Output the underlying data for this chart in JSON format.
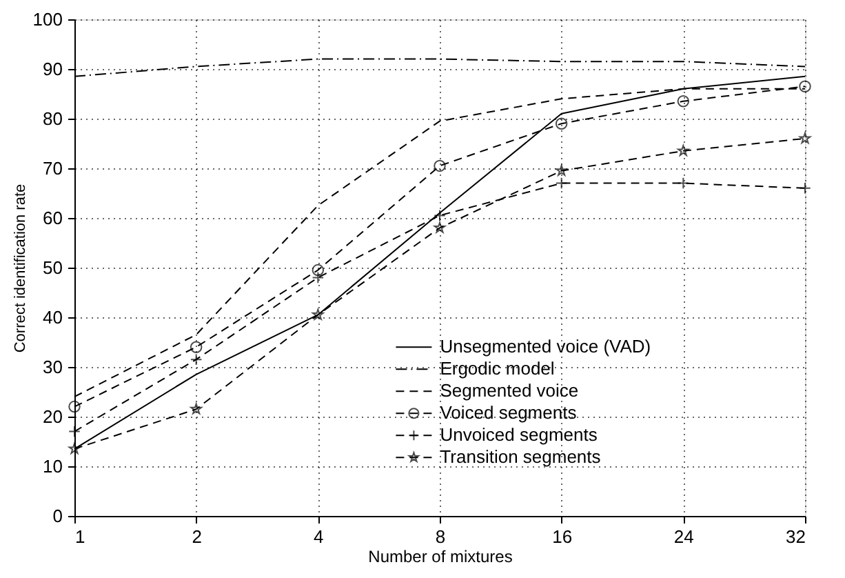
{
  "chart_data": {
    "type": "line",
    "xlabel": "Number of mixtures",
    "ylabel": "Correct identification rate",
    "categories": [
      "1",
      "2",
      "4",
      "8",
      "16",
      "24",
      "32"
    ],
    "ylim": [
      0,
      100
    ],
    "yticks": [
      0,
      10,
      20,
      30,
      40,
      50,
      60,
      70,
      80,
      90,
      100
    ],
    "grid": true,
    "legend": "bottom right",
    "series": [
      {
        "name": "Unsegmented voice (VAD)",
        "color": "#000000",
        "line_style": "solid",
        "marker": "none",
        "values": [
          13.5,
          28.5,
          40.5,
          61,
          81,
          86,
          88.5
        ]
      },
      {
        "name": "Ergodic model",
        "color": "#000000",
        "line_style": "dashdot",
        "marker": "none",
        "values": [
          88.5,
          90.5,
          92,
          92,
          91.5,
          91.5,
          90.5
        ]
      },
      {
        "name": "Segmented voice",
        "color": "#000000",
        "line_style": "dashed",
        "marker": "none",
        "values": [
          24,
          36.5,
          62.5,
          79.5,
          84,
          86,
          86
        ]
      },
      {
        "name": "Voiced segments",
        "color": "#000000",
        "line_style": "dashed",
        "marker": "circle",
        "values": [
          22,
          34,
          49.5,
          70.5,
          79,
          83.5,
          86.5
        ]
      },
      {
        "name": "Unvoiced segments",
        "color": "#000000",
        "line_style": "dashed",
        "marker": "cross",
        "values": [
          17,
          31.5,
          48,
          60.5,
          67,
          67,
          66
        ]
      },
      {
        "name": "Transition segments",
        "color": "#000000",
        "line_style": "dashed",
        "marker": "star",
        "values": [
          13.5,
          21.5,
          40.5,
          58,
          69.5,
          73.5,
          76
        ]
      }
    ]
  }
}
